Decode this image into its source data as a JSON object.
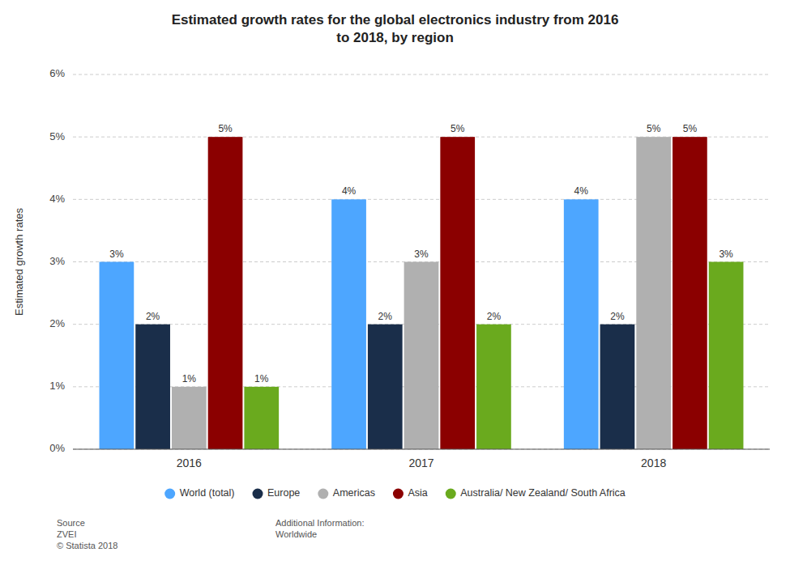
{
  "chart_data": {
    "type": "bar",
    "title": "Estimated growth rates for the global electronics industry from 2016\nto 2018, by region",
    "ylabel": "Estimated growth rates",
    "categories": [
      "2016",
      "2017",
      "2018"
    ],
    "series": [
      {
        "name": "World (total)",
        "color": "#4da6ff",
        "values": [
          3,
          4,
          4
        ],
        "value_labels": [
          "3%",
          "4%",
          "4%"
        ]
      },
      {
        "name": "Europe",
        "color": "#1a2e4a",
        "values": [
          2,
          2,
          2
        ],
        "value_labels": [
          "2%",
          "2%",
          "2%"
        ]
      },
      {
        "name": "Americas",
        "color": "#b0b0b0",
        "values": [
          1,
          3,
          5
        ],
        "value_labels": [
          "1%",
          "3%",
          "5%"
        ]
      },
      {
        "name": "Asia",
        "color": "#8b0000",
        "values": [
          5,
          5,
          5
        ],
        "value_labels": [
          "5%",
          "5%",
          "5%"
        ]
      },
      {
        "name": "Australia/ New Zealand/ South Africa",
        "color": "#6aaa1e",
        "values": [
          1,
          2,
          3
        ],
        "value_labels": [
          "1%",
          "2%",
          "3%"
        ]
      }
    ],
    "ylim": [
      0,
      6
    ],
    "yticks": [
      {
        "value": 0,
        "label": "0%"
      },
      {
        "value": 1,
        "label": "1%"
      },
      {
        "value": 2,
        "label": "2%"
      },
      {
        "value": 3,
        "label": "3%"
      },
      {
        "value": 4,
        "label": "4%"
      },
      {
        "value": 5,
        "label": "5%"
      },
      {
        "value": 6,
        "label": "6%"
      }
    ],
    "grid": true,
    "legend": "bottom",
    "data_labels": true,
    "annotations": [
      "Source\nZVEI\n© Statista 2018",
      "Additional Information:\nWorldwide"
    ]
  }
}
